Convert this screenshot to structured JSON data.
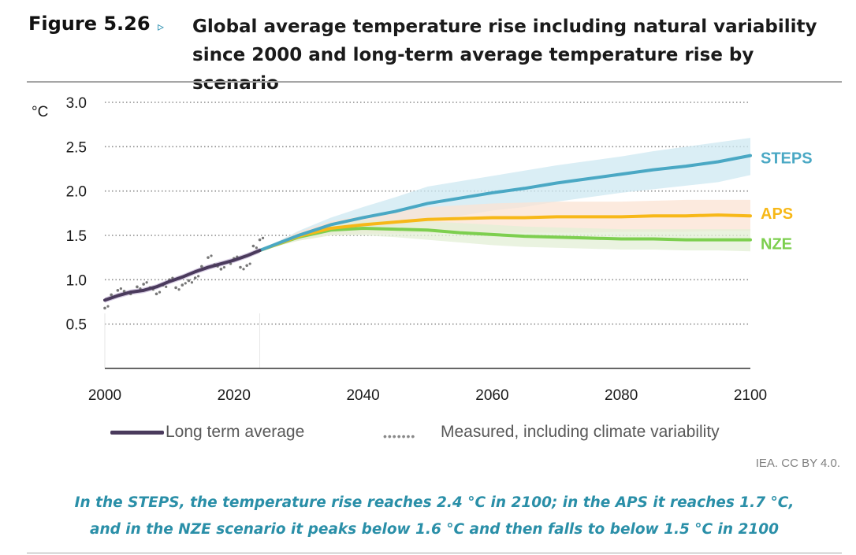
{
  "figure": {
    "label": "Figure 5.26",
    "arrow": "▹",
    "title_line1": "Global average temperature rise including natural variability",
    "title_line2": "since 2000 and long-term average temperature rise by scenario"
  },
  "legend": {
    "long_term": "Long term average",
    "measured_dots": "•••••••",
    "measured": "Measured, including climate variability"
  },
  "source": "IEA. CC BY 4.0.",
  "caption": {
    "line1": "In the STEPS, the temperature rise reaches 2.4 °C in 2100; in the APS it reaches 1.7 °C,",
    "line2": "and in the NZE scenario it peaks below 1.6 °C and then falls to below 1.5 °C in 2100"
  },
  "colors": {
    "steps": "#4aa8c4",
    "aps": "#f7b818",
    "nze": "#7dcf4f",
    "history": "#4a3a5c",
    "steps_band": "#cde8f1",
    "aps_band": "#fbe3d3",
    "nze_band": "#e3efd6",
    "history_band": "#c9bcd8",
    "measured": "#777777",
    "caption": "#2a8fa8"
  },
  "chart_data": {
    "type": "line",
    "unit": "°C",
    "xlim": [
      2000,
      2100
    ],
    "ylim": [
      0,
      3.0
    ],
    "x_ticks": [
      2000,
      2020,
      2040,
      2060,
      2080,
      2100
    ],
    "y_ticks": [
      0.5,
      1.0,
      1.5,
      2.0,
      2.5,
      3.0
    ],
    "y_tick_labels": [
      "0.5",
      "1.0",
      "1.5",
      "2.0",
      "2.5",
      "3.0"
    ],
    "grid": "horizontal-dotted",
    "history": {
      "name": "Long term average",
      "x": [
        2000,
        2002,
        2004,
        2006,
        2008,
        2010,
        2012,
        2014,
        2016,
        2018,
        2020,
        2022,
        2024
      ],
      "y": [
        0.77,
        0.82,
        0.86,
        0.88,
        0.92,
        0.98,
        1.03,
        1.09,
        1.14,
        1.18,
        1.22,
        1.27,
        1.33
      ]
    },
    "measured": {
      "name": "Measured, including climate variability",
      "x": [
        2000,
        2001,
        2002,
        2003,
        2004,
        2005,
        2006,
        2007,
        2008,
        2009,
        2010,
        2011,
        2012,
        2013,
        2014,
        2015,
        2016,
        2017,
        2018,
        2019,
        2020,
        2021,
        2022,
        2023,
        2024
      ],
      "y": [
        0.68,
        0.83,
        0.88,
        0.87,
        0.84,
        0.92,
        0.95,
        0.91,
        0.84,
        0.94,
        1.0,
        0.91,
        0.94,
        0.99,
        1.02,
        1.15,
        1.25,
        1.17,
        1.12,
        1.2,
        1.24,
        1.14,
        1.16,
        1.38,
        1.45
      ]
    },
    "series": [
      {
        "name": "STEPS",
        "x": [
          2024,
          2030,
          2035,
          2040,
          2045,
          2050,
          2055,
          2060,
          2065,
          2070,
          2075,
          2080,
          2085,
          2090,
          2095,
          2100
        ],
        "y": [
          1.33,
          1.5,
          1.62,
          1.7,
          1.77,
          1.86,
          1.92,
          1.98,
          2.03,
          2.09,
          2.14,
          2.19,
          2.24,
          2.28,
          2.33,
          2.4
        ],
        "low": [
          1.33,
          1.45,
          1.52,
          1.56,
          1.6,
          1.65,
          1.72,
          1.78,
          1.82,
          1.88,
          1.93,
          1.98,
          2.02,
          2.06,
          2.1,
          2.18
        ],
        "high": [
          1.33,
          1.55,
          1.7,
          1.82,
          1.93,
          2.05,
          2.11,
          2.17,
          2.23,
          2.29,
          2.34,
          2.39,
          2.45,
          2.5,
          2.55,
          2.6
        ]
      },
      {
        "name": "APS",
        "x": [
          2024,
          2030,
          2035,
          2040,
          2045,
          2050,
          2055,
          2060,
          2065,
          2070,
          2075,
          2080,
          2085,
          2090,
          2095,
          2100
        ],
        "y": [
          1.33,
          1.49,
          1.58,
          1.62,
          1.65,
          1.68,
          1.69,
          1.7,
          1.7,
          1.71,
          1.71,
          1.71,
          1.72,
          1.72,
          1.73,
          1.72
        ],
        "low": [
          1.33,
          1.44,
          1.5,
          1.52,
          1.52,
          1.53,
          1.53,
          1.53,
          1.53,
          1.53,
          1.53,
          1.54,
          1.54,
          1.54,
          1.55,
          1.55
        ],
        "high": [
          1.33,
          1.54,
          1.66,
          1.72,
          1.78,
          1.82,
          1.84,
          1.86,
          1.87,
          1.88,
          1.88,
          1.88,
          1.89,
          1.9,
          1.9,
          1.9
        ]
      },
      {
        "name": "NZE",
        "x": [
          2024,
          2030,
          2035,
          2040,
          2045,
          2050,
          2055,
          2060,
          2065,
          2070,
          2075,
          2080,
          2085,
          2090,
          2095,
          2100
        ],
        "y": [
          1.33,
          1.48,
          1.56,
          1.58,
          1.57,
          1.56,
          1.53,
          1.51,
          1.49,
          1.48,
          1.47,
          1.46,
          1.46,
          1.45,
          1.45,
          1.45
        ],
        "low": [
          1.33,
          1.44,
          1.5,
          1.5,
          1.48,
          1.45,
          1.42,
          1.39,
          1.37,
          1.36,
          1.35,
          1.34,
          1.34,
          1.33,
          1.33,
          1.32
        ],
        "high": [
          1.33,
          1.52,
          1.62,
          1.67,
          1.67,
          1.66,
          1.64,
          1.62,
          1.6,
          1.59,
          1.58,
          1.57,
          1.57,
          1.57,
          1.57,
          1.57
        ]
      }
    ]
  }
}
